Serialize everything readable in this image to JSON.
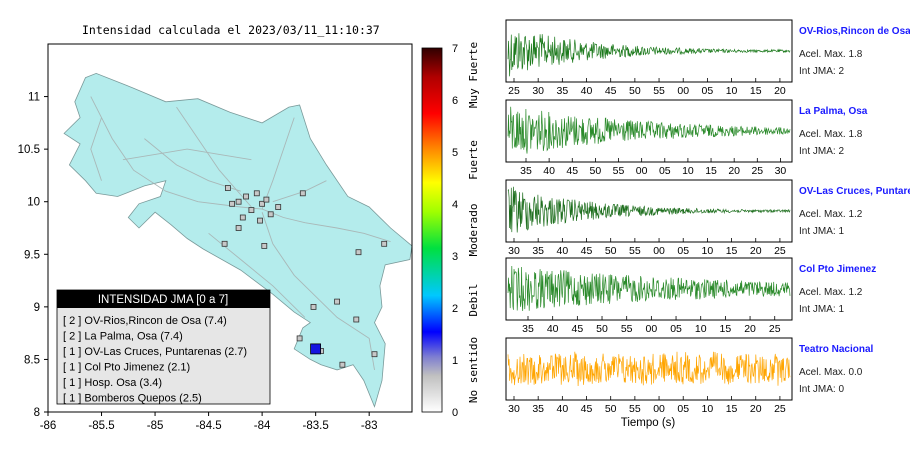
{
  "map": {
    "title": "Intensidad calculada el 2023/03/11_11:10:37",
    "x_ticks": [
      "-86",
      "-85.5",
      "-85",
      "-84.5",
      "-84",
      "-83.5",
      "-83"
    ],
    "y_ticks": [
      "8",
      "8.5",
      "9",
      "9.5",
      "10",
      "10.5",
      "11"
    ],
    "lon_range": [
      -86,
      -82.6
    ],
    "lat_range": [
      8,
      11.5
    ],
    "land_color": "#b4ecec",
    "epicenter": {
      "lon": -83.5,
      "lat": 8.6,
      "color": "#1515e0"
    }
  },
  "legend": {
    "title": "INTENSIDAD JMA [0 a 7]",
    "items": [
      "[ 2 ]  OV-Rios,Rincon de Osa (7.4)",
      "[ 2 ]  La Palma, Osa (7.4)",
      "[ 1 ]  OV-Las Cruces, Puntarenas (2.7)",
      "[ 1 ]  Col Pto Jimenez (2.1)",
      "[ 1 ]  Hosp. Osa (3.4)",
      "[ 1 ]  Bomberos Quepos (2.5)"
    ]
  },
  "colorbar": {
    "ticks": [
      "0",
      "1",
      "2",
      "3",
      "4",
      "5",
      "6",
      "7"
    ],
    "labels": [
      "No sentido",
      "Debil",
      "Moderado",
      "Fuerte",
      "Muy Fuerte"
    ]
  },
  "seismograms": {
    "xlabel": "Tiempo (s)",
    "traces": [
      {
        "station": "OV-Rios,Rincon de Osa",
        "accel": "Acel. Max. 1.8",
        "jma": "Int JMA: 2",
        "ticks": [
          "25",
          "30",
          "35",
          "40",
          "45",
          "50",
          "55",
          "00",
          "05",
          "10",
          "15",
          "20"
        ],
        "color": "#1d7a1d"
      },
      {
        "station": "La Palma, Osa",
        "accel": "Acel. Max. 1.8",
        "jma": "Int JMA: 2",
        "ticks": [
          "35",
          "40",
          "45",
          "50",
          "55",
          "00",
          "05",
          "10",
          "15",
          "20",
          "25",
          "30"
        ],
        "color": "#2a8a2a"
      },
      {
        "station": "OV-Las Cruces, Puntarenas",
        "accel": "Acel. Max. 1.2",
        "jma": "Int JMA: 1",
        "ticks": [
          "30",
          "35",
          "40",
          "45",
          "50",
          "55",
          "00",
          "05",
          "10",
          "15",
          "20",
          "25"
        ],
        "color": "#1d6e1d"
      },
      {
        "station": "Col Pto Jimenez",
        "accel": "Acel. Max. 1.2",
        "jma": "Int JMA: 1",
        "ticks": [
          "35",
          "40",
          "45",
          "50",
          "55",
          "00",
          "05",
          "10",
          "15",
          "20",
          "25"
        ],
        "color": "#2a8a2a"
      },
      {
        "station": "Teatro Nacional",
        "accel": "Acel. Max. 0.0",
        "jma": "Int JMA: 0",
        "ticks": [
          "30",
          "35",
          "40",
          "45",
          "50",
          "55",
          "00",
          "05",
          "10",
          "15",
          "20",
          "25"
        ],
        "color": "#ffa500"
      }
    ]
  },
  "chart_data": [
    {
      "type": "scatter",
      "title": "Intensidad calculada el 2023/03/11_11:10:37",
      "xlabel": "",
      "ylabel": "",
      "xlim": [
        -86,
        -82.6
      ],
      "ylim": [
        8,
        11.5
      ],
      "series": [
        {
          "name": "Epicentro",
          "x": [
            -83.5
          ],
          "y": [
            8.6
          ]
        }
      ]
    },
    {
      "type": "line",
      "title": "",
      "xlabel": "Tiempo (s)",
      "series": [
        {
          "name": "OV-Rios,Rincon de Osa",
          "peak_accel": 1.8,
          "jma": 2
        },
        {
          "name": "La Palma, Osa",
          "peak_accel": 1.8,
          "jma": 2
        },
        {
          "name": "OV-Las Cruces, Puntarenas",
          "peak_accel": 1.2,
          "jma": 1
        },
        {
          "name": "Col Pto Jimenez",
          "peak_accel": 1.2,
          "jma": 1
        },
        {
          "name": "Teatro Nacional",
          "peak_accel": 0.0,
          "jma": 0
        }
      ]
    }
  ]
}
